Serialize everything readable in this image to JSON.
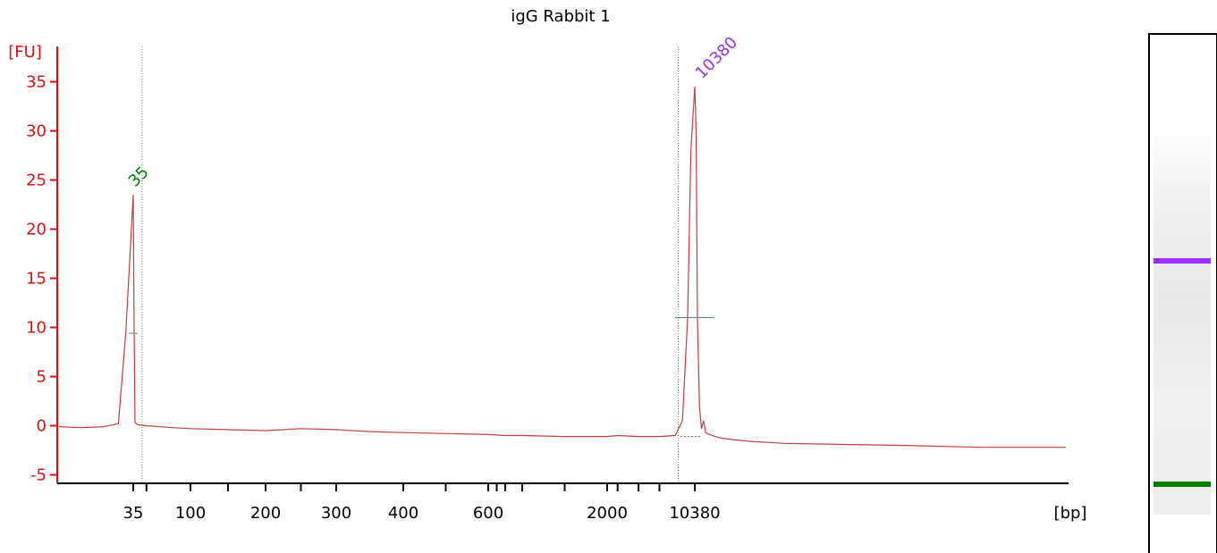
{
  "chart_data": {
    "type": "line",
    "title": "igG Rabbit 1",
    "ylabel": "[FU]",
    "xlabel": "[bp]",
    "ylim": [
      -6,
      39
    ],
    "yticks": [
      -5,
      0,
      5,
      10,
      15,
      20,
      25,
      30,
      35
    ],
    "xtick_labels": [
      "35",
      "100",
      "200",
      "300",
      "400",
      "600",
      "2000",
      "10380"
    ],
    "grid": false,
    "peaks": [
      {
        "label": "35",
        "size_bp": 35,
        "height_fu": 23.5,
        "color": "#008000"
      },
      {
        "label": "10380",
        "size_bp": 10380,
        "height_fu": 34.5,
        "color": "#9b30ff"
      }
    ],
    "markers": [
      "35",
      "10380"
    ],
    "series": [
      {
        "line_color": "#c04040",
        "points": [
          [
            25,
            -0.1
          ],
          [
            28,
            -0.2
          ],
          [
            31,
            -0.1
          ],
          [
            33,
            0.2
          ],
          [
            34,
            9.5
          ],
          [
            35,
            23.5
          ],
          [
            36,
            9.5
          ],
          [
            37,
            0.3
          ],
          [
            40,
            0.1
          ],
          [
            50,
            0.0
          ],
          [
            80,
            -0.2
          ],
          [
            100,
            -0.3
          ],
          [
            150,
            -0.4
          ],
          [
            200,
            -0.5
          ],
          [
            250,
            -0.3
          ],
          [
            300,
            -0.4
          ],
          [
            350,
            -0.6
          ],
          [
            400,
            -0.7
          ],
          [
            500,
            -0.8
          ],
          [
            600,
            -0.9
          ],
          [
            800,
            -1.0
          ],
          [
            1000,
            -1.0
          ],
          [
            1500,
            -1.1
          ],
          [
            2000,
            -1.1
          ],
          [
            3000,
            -1.0
          ],
          [
            5000,
            -1.1
          ],
          [
            7000,
            -1.1
          ],
          [
            8500,
            -1.0
          ],
          [
            9200,
            0.5
          ],
          [
            9700,
            11.0
          ],
          [
            10000,
            28.0
          ],
          [
            10380,
            34.5
          ],
          [
            10700,
            30.0
          ],
          [
            11000,
            11.0
          ],
          [
            11500,
            2.0
          ],
          [
            12000,
            -0.3
          ],
          [
            12500,
            0.5
          ],
          [
            13000,
            -0.7
          ],
          [
            14000,
            -0.9
          ],
          [
            16000,
            -1.2
          ],
          [
            19000,
            -1.4
          ],
          [
            24000,
            -1.6
          ],
          [
            32000,
            -1.8
          ],
          [
            45000,
            -1.9
          ],
          [
            60000,
            -2.0
          ],
          [
            80000,
            -2.2
          ],
          [
            100000,
            -2.2
          ]
        ]
      }
    ],
    "gel_bands": [
      {
        "color": "#9b30ff"
      },
      {
        "color": "#008000"
      }
    ]
  }
}
